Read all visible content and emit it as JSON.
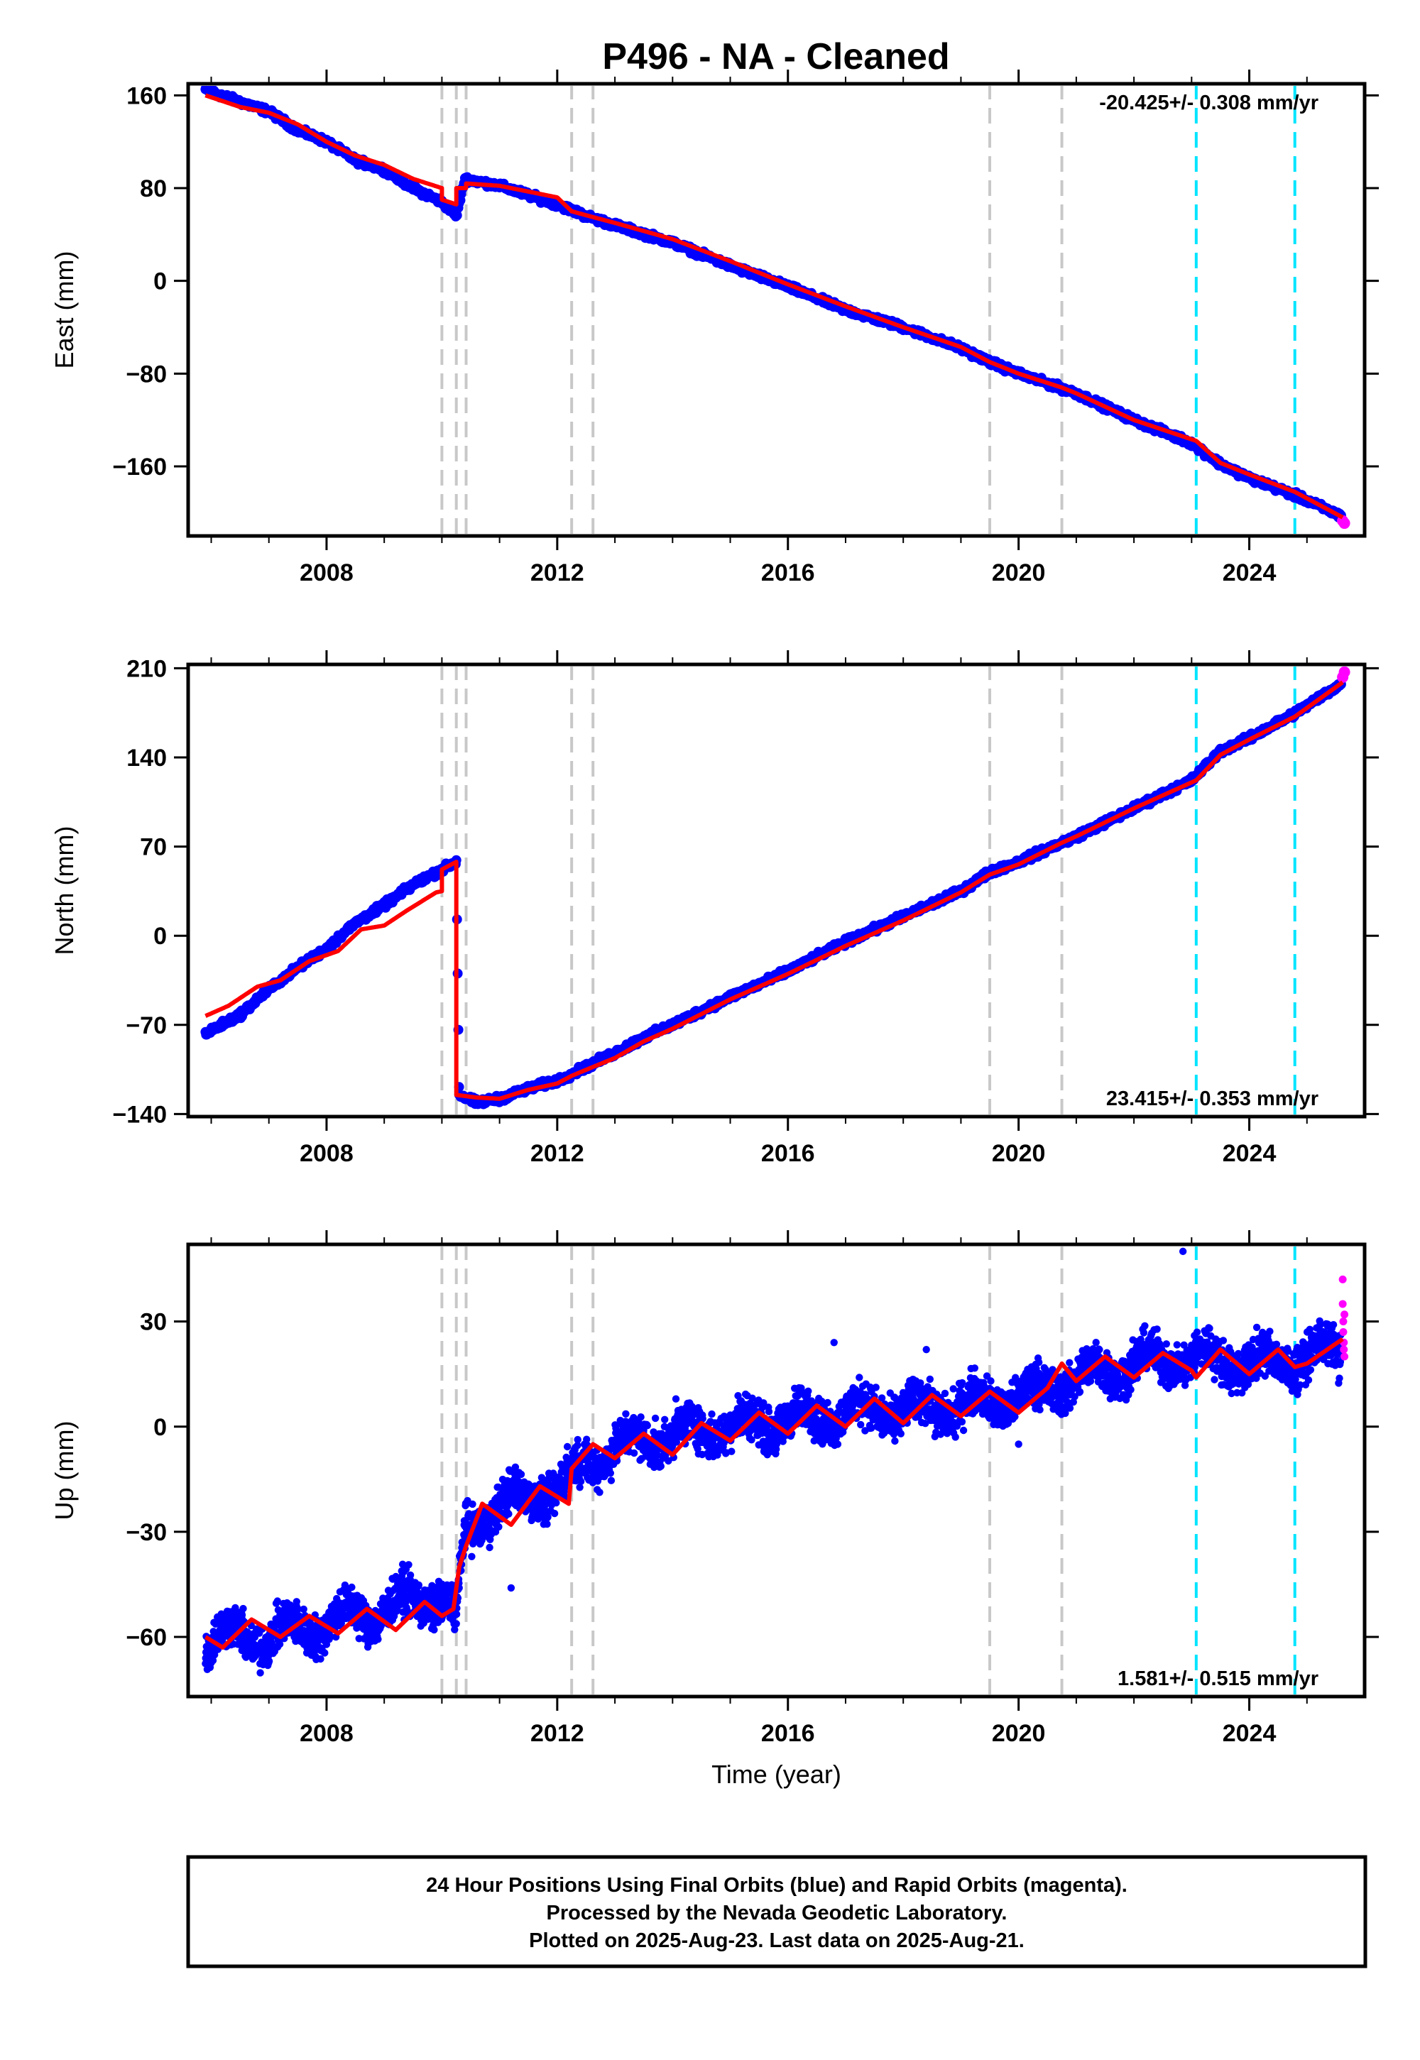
{
  "title": "P496  - NA - Cleaned",
  "colors": {
    "final": "#0000ff",
    "rapid": "#ff00ff",
    "model": "#ff0000",
    "break_gray": "#c8c8c8",
    "break_cyan": "#00e5ff"
  },
  "chart_data": [
    {
      "type": "scatter",
      "panel": "east",
      "ylabel": "East (mm)",
      "xlabel": "",
      "xlim": [
        2005.6,
        2026.0
      ],
      "ylim": [
        -220,
        170
      ],
      "yticks": [
        160,
        80,
        0,
        -80,
        -160
      ],
      "ytick_labels": [
        "160",
        "80",
        "0",
        "−80",
        "−160"
      ],
      "xticks": [
        2008,
        2012,
        2016,
        2020,
        2024
      ],
      "xtick_labels": [
        "2008",
        "2012",
        "2016",
        "2020",
        "2024"
      ],
      "rate": "-20.425+/- 0.308 mm/yr",
      "rate_position": "top-right",
      "gray_breaks": [
        2010.0,
        2010.25,
        2010.42,
        2012.25,
        2012.62,
        2019.5,
        2020.75
      ],
      "cyan_breaks": [
        2023.08,
        2024.79
      ],
      "series": [
        {
          "name": "Final Orbits (blue)",
          "points": [
            [
              2005.9,
              165
            ],
            [
              2006.4,
              156
            ],
            [
              2007.0,
              146
            ],
            [
              2007.5,
              130
            ],
            [
              2008.0,
              120
            ],
            [
              2008.5,
              104
            ],
            [
              2009.0,
              96
            ],
            [
              2009.5,
              80
            ],
            [
              2010.0,
              68
            ],
            [
              2010.25,
              56
            ],
            [
              2010.4,
              88
            ],
            [
              2011.0,
              82
            ],
            [
              2011.5,
              74
            ],
            [
              2012.0,
              66
            ],
            [
              2012.5,
              56
            ],
            [
              2013.0,
              48
            ],
            [
              2014.0,
              33
            ],
            [
              2015.0,
              13
            ],
            [
              2016.0,
              -5
            ],
            [
              2017.0,
              -25
            ],
            [
              2018.0,
              -40
            ],
            [
              2019.0,
              -58
            ],
            [
              2019.5,
              -70
            ],
            [
              2020.0,
              -80
            ],
            [
              2021.0,
              -97
            ],
            [
              2022.0,
              -120
            ],
            [
              2023.0,
              -140
            ],
            [
              2023.5,
              -158
            ],
            [
              2024.0,
              -170
            ],
            [
              2024.8,
              -185
            ],
            [
              2025.6,
              -203
            ]
          ]
        },
        {
          "name": "Rapid Orbits (magenta)",
          "points": [
            [
              2025.62,
              -207
            ],
            [
              2025.65,
              -209
            ]
          ]
        }
      ],
      "model": {
        "name": "Model fit",
        "points": [
          [
            2005.9,
            160
          ],
          [
            2006.5,
            150
          ],
          [
            2007.0,
            145
          ],
          [
            2007.5,
            135
          ],
          [
            2008.0,
            120
          ],
          [
            2008.5,
            108
          ],
          [
            2009.0,
            100
          ],
          [
            2009.5,
            88
          ],
          [
            2010.0,
            80
          ],
          [
            2010.0,
            70
          ],
          [
            2010.25,
            66
          ],
          [
            2010.25,
            80
          ],
          [
            2010.42,
            80
          ],
          [
            2010.42,
            84
          ],
          [
            2011.0,
            82
          ],
          [
            2012.0,
            72
          ],
          [
            2012.25,
            60
          ],
          [
            2012.62,
            55
          ],
          [
            2013.0,
            50
          ],
          [
            2014.0,
            36
          ],
          [
            2015.0,
            17
          ],
          [
            2016.0,
            -3
          ],
          [
            2017.0,
            -22
          ],
          [
            2018.0,
            -40
          ],
          [
            2019.0,
            -57
          ],
          [
            2019.5,
            -70
          ],
          [
            2020.0,
            -80
          ],
          [
            2020.75,
            -92
          ],
          [
            2021.0,
            -97
          ],
          [
            2022.0,
            -120
          ],
          [
            2023.08,
            -138
          ],
          [
            2023.5,
            -157
          ],
          [
            2024.0,
            -167
          ],
          [
            2024.79,
            -182
          ],
          [
            2025.62,
            -204
          ]
        ]
      }
    },
    {
      "type": "scatter",
      "panel": "north",
      "ylabel": "North (mm)",
      "xlabel": "",
      "xlim": [
        2005.6,
        2026.0
      ],
      "ylim": [
        -142,
        213
      ],
      "yticks": [
        210,
        140,
        70,
        0,
        -70,
        -140
      ],
      "ytick_labels": [
        "210",
        "140",
        "70",
        "0",
        "−70",
        "−140"
      ],
      "xticks": [
        2008,
        2012,
        2016,
        2020,
        2024
      ],
      "xtick_labels": [
        "2008",
        "2012",
        "2016",
        "2020",
        "2024"
      ],
      "rate": "23.415+/- 0.353 mm/yr",
      "rate_position": "bottom-right",
      "gray_breaks": [
        2010.0,
        2010.25,
        2010.42,
        2012.25,
        2012.62,
        2019.5,
        2020.75
      ],
      "cyan_breaks": [
        2023.08,
        2024.79
      ],
      "series": [
        {
          "name": "Final Orbits (blue)",
          "points": [
            [
              2005.9,
              -77
            ],
            [
              2006.5,
              -62
            ],
            [
              2007.0,
              -42
            ],
            [
              2007.5,
              -25
            ],
            [
              2008.0,
              -10
            ],
            [
              2008.5,
              10
            ],
            [
              2009.0,
              24
            ],
            [
              2009.5,
              40
            ],
            [
              2010.0,
              52
            ],
            [
              2010.25,
              58
            ],
            [
              2010.3,
              -125
            ],
            [
              2010.6,
              -131
            ],
            [
              2011.0,
              -128
            ],
            [
              2011.5,
              -120
            ],
            [
              2012.0,
              -114
            ],
            [
              2012.5,
              -103
            ],
            [
              2013.0,
              -92
            ],
            [
              2013.5,
              -80
            ],
            [
              2014.0,
              -70
            ],
            [
              2015.0,
              -48
            ],
            [
              2016.0,
              -28
            ],
            [
              2017.0,
              -5
            ],
            [
              2018.0,
              15
            ],
            [
              2019.0,
              35
            ],
            [
              2019.5,
              50
            ],
            [
              2020.0,
              58
            ],
            [
              2021.0,
              78
            ],
            [
              2022.0,
              100
            ],
            [
              2023.0,
              122
            ],
            [
              2023.5,
              145
            ],
            [
              2024.0,
              155
            ],
            [
              2024.8,
              175
            ],
            [
              2025.6,
              198
            ]
          ]
        },
        {
          "name": "Rapid Orbits (magenta)",
          "points": [
            [
              2025.62,
              203
            ],
            [
              2025.65,
              207
            ]
          ]
        }
      ],
      "model": {
        "name": "Model fit",
        "points": [
          [
            2005.9,
            -63
          ],
          [
            2006.3,
            -55
          ],
          [
            2006.8,
            -40
          ],
          [
            2007.2,
            -35
          ],
          [
            2007.7,
            -20
          ],
          [
            2008.2,
            -12
          ],
          [
            2008.6,
            5
          ],
          [
            2009.0,
            8
          ],
          [
            2009.4,
            20
          ],
          [
            2009.9,
            34
          ],
          [
            2010.0,
            35
          ],
          [
            2010.0,
            52
          ],
          [
            2010.25,
            58
          ],
          [
            2010.25,
            -125
          ],
          [
            2010.6,
            -127
          ],
          [
            2011.0,
            -128
          ],
          [
            2011.5,
            -121
          ],
          [
            2012.0,
            -116
          ],
          [
            2012.25,
            -110
          ],
          [
            2012.62,
            -103
          ],
          [
            2013.0,
            -96
          ],
          [
            2013.5,
            -83
          ],
          [
            2014.0,
            -73
          ],
          [
            2015.0,
            -50
          ],
          [
            2016.0,
            -30
          ],
          [
            2017.0,
            -8
          ],
          [
            2018.0,
            12
          ],
          [
            2019.0,
            34
          ],
          [
            2019.5,
            48
          ],
          [
            2020.0,
            56
          ],
          [
            2020.75,
            73
          ],
          [
            2021.0,
            78
          ],
          [
            2022.0,
            100
          ],
          [
            2023.08,
            122
          ],
          [
            2023.5,
            142
          ],
          [
            2024.0,
            154
          ],
          [
            2024.79,
            172
          ],
          [
            2025.62,
            199
          ]
        ]
      }
    },
    {
      "type": "scatter",
      "panel": "up",
      "ylabel": "Up (mm)",
      "xlabel": "Time (year)",
      "xlim": [
        2005.6,
        2026.0
      ],
      "ylim": [
        -77,
        52
      ],
      "yticks": [
        30,
        0,
        -30,
        -60
      ],
      "ytick_labels": [
        "30",
        "0",
        "−30",
        "−60"
      ],
      "xticks": [
        2008,
        2012,
        2016,
        2020,
        2024
      ],
      "xtick_labels": [
        "2008",
        "2012",
        "2016",
        "2020",
        "2024"
      ],
      "rate": "1.581+/- 0.515 mm/yr",
      "rate_position": "bottom-right",
      "gray_breaks": [
        2010.0,
        2010.25,
        2010.42,
        2012.25,
        2012.62,
        2019.5,
        2020.75
      ],
      "cyan_breaks": [
        2023.08,
        2024.79
      ],
      "series": [
        {
          "name": "Final Orbits (blue)",
          "points": [
            [
              2005.9,
              -63
            ],
            [
              2006.5,
              -58
            ],
            [
              2007.0,
              -62
            ],
            [
              2007.5,
              -56
            ],
            [
              2008.0,
              -58
            ],
            [
              2008.5,
              -52
            ],
            [
              2009.0,
              -54
            ],
            [
              2009.5,
              -48
            ],
            [
              2010.0,
              -50
            ],
            [
              2010.25,
              -55
            ],
            [
              2010.4,
              -30
            ],
            [
              2011.0,
              -22
            ],
            [
              2011.5,
              -20
            ],
            [
              2012.0,
              -18
            ],
            [
              2012.5,
              -10
            ],
            [
              2013.0,
              -6
            ],
            [
              2014.0,
              -2
            ],
            [
              2015.0,
              0
            ],
            [
              2016.0,
              2
            ],
            [
              2017.0,
              4
            ],
            [
              2018.0,
              5
            ],
            [
              2019.0,
              6
            ],
            [
              2020.0,
              8
            ],
            [
              2021.0,
              14
            ],
            [
              2022.0,
              18
            ],
            [
              2023.0,
              20
            ],
            [
              2024.0,
              18
            ],
            [
              2025.0,
              20
            ],
            [
              2025.6,
              22
            ]
          ]
        },
        {
          "name": "Rapid Orbits (magenta)",
          "points": [
            [
              2025.62,
              42
            ],
            [
              2025.62,
              35
            ],
            [
              2025.63,
              30
            ],
            [
              2025.63,
              27
            ],
            [
              2025.64,
              24
            ],
            [
              2025.64,
              22
            ],
            [
              2025.65,
              20
            ],
            [
              2025.65,
              32
            ]
          ]
        }
      ],
      "model": {
        "name": "Model fit",
        "points": [
          [
            2005.9,
            -60
          ],
          [
            2006.2,
            -63
          ],
          [
            2006.7,
            -55
          ],
          [
            2007.2,
            -60
          ],
          [
            2007.7,
            -54
          ],
          [
            2008.2,
            -59
          ],
          [
            2008.7,
            -52
          ],
          [
            2009.2,
            -58
          ],
          [
            2009.7,
            -50
          ],
          [
            2010.0,
            -54
          ],
          [
            2010.2,
            -52
          ],
          [
            2010.3,
            -40
          ],
          [
            2010.42,
            -34
          ],
          [
            2010.7,
            -22
          ],
          [
            2011.2,
            -28
          ],
          [
            2011.7,
            -17
          ],
          [
            2012.2,
            -22
          ],
          [
            2012.25,
            -12
          ],
          [
            2012.62,
            -5
          ],
          [
            2013.0,
            -9
          ],
          [
            2013.5,
            -2
          ],
          [
            2014.0,
            -8
          ],
          [
            2014.5,
            1
          ],
          [
            2015.0,
            -4
          ],
          [
            2015.5,
            4
          ],
          [
            2016.0,
            -2
          ],
          [
            2016.5,
            6
          ],
          [
            2017.0,
            0
          ],
          [
            2017.5,
            8
          ],
          [
            2018.0,
            1
          ],
          [
            2018.5,
            9
          ],
          [
            2019.0,
            3
          ],
          [
            2019.5,
            10
          ],
          [
            2020.0,
            4
          ],
          [
            2020.5,
            11
          ],
          [
            2020.75,
            18
          ],
          [
            2021.0,
            13
          ],
          [
            2021.5,
            20
          ],
          [
            2022.0,
            14
          ],
          [
            2022.5,
            21
          ],
          [
            2023.0,
            16
          ],
          [
            2023.08,
            14
          ],
          [
            2023.5,
            22
          ],
          [
            2024.0,
            15
          ],
          [
            2024.5,
            22
          ],
          [
            2024.79,
            17
          ],
          [
            2025.0,
            18
          ],
          [
            2025.62,
            25
          ]
        ]
      }
    }
  ],
  "footer": {
    "line1": "24 Hour Positions Using Final Orbits (blue) and Rapid Orbits (magenta).",
    "line2": "Processed by the Nevada Geodetic Laboratory.",
    "line3": "Plotted on 2025-Aug-23. Last data on 2025-Aug-21."
  }
}
